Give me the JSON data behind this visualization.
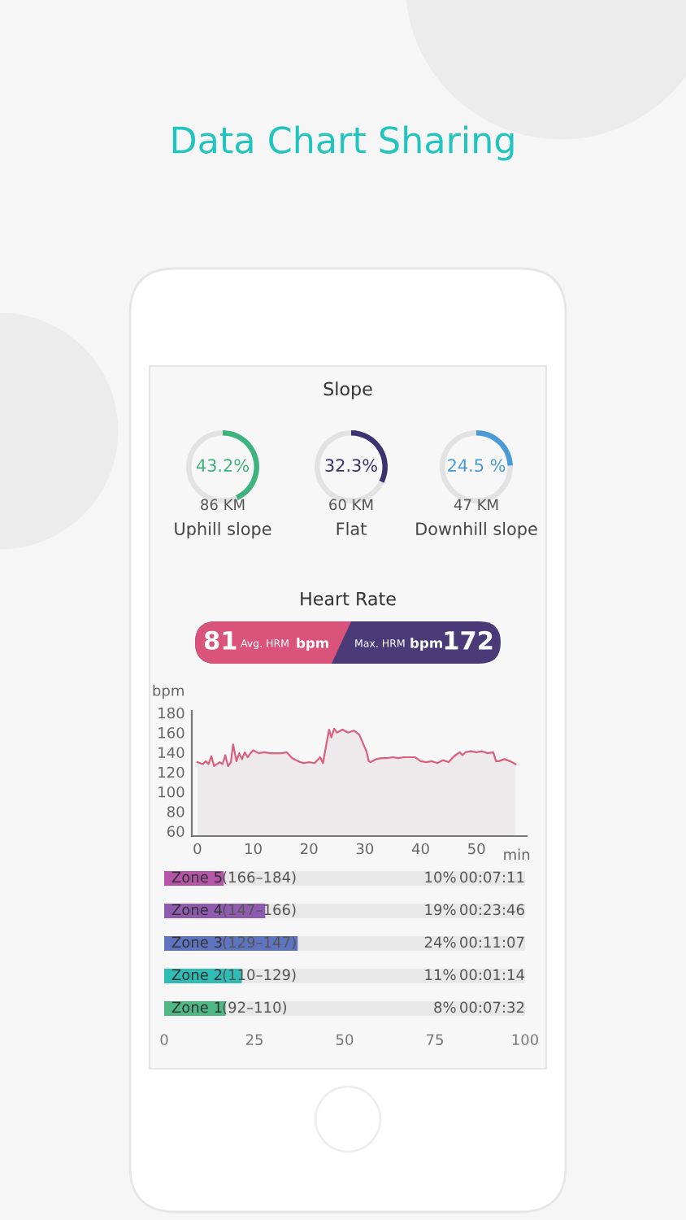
{
  "chart_data": [
    {
      "type": "other",
      "title": "Data Chart Sharing",
      "annotations": [
        "Slope"
      ]
    },
    {
      "type": "donut",
      "title": "Uphill slope",
      "subtitle": "86 KM",
      "categories": [
        null,
        null
      ],
      "values": [
        43.2,
        56.8
      ],
      "colors": [
        "#3fb27f",
        "#e2e2e2"
      ],
      "value_labels": [
        "43.2%",
        null
      ]
    },
    {
      "type": "donut",
      "title": "Flat",
      "subtitle": "60 KM",
      "categories": [
        null,
        null
      ],
      "values": [
        32.3,
        67.7
      ],
      "colors": [
        "#3d3270",
        "#e2e2e2"
      ],
      "value_labels": [
        "32.3%",
        null
      ]
    },
    {
      "type": "donut",
      "title": "Downhill slope",
      "subtitle": "47 KM",
      "categories": [
        null,
        null
      ],
      "values": [
        24.5,
        75.5
      ],
      "colors": [
        "#4a9ad6",
        "#e2e2e2"
      ],
      "value_labels": [
        "24.5 %",
        null
      ]
    },
    {
      "type": "other",
      "title": "Heart Rate",
      "colors": [
        "#d9537a",
        "#4a3b78"
      ],
      "annotations": [
        "81",
        "Avg. HRM",
        "bpm",
        "Max. HRM",
        "bpm",
        "172"
      ]
    },
    {
      "type": "area",
      "xlabel": "min",
      "ylabel": "bpm",
      "xlim": [
        -1,
        59
      ],
      "ylim": [
        55,
        182
      ],
      "xticks": [
        0,
        10,
        20,
        30,
        40,
        50
      ],
      "yticks": [
        60,
        80,
        100,
        120,
        140,
        160,
        180
      ],
      "grid": false,
      "marker": "none",
      "line_style": "solid",
      "series": [
        {
          "color": "#d9607f",
          "x": [
            0,
            1,
            1.5,
            2,
            2.5,
            3,
            4,
            4.5,
            5,
            5.5,
            6,
            6.4,
            7,
            7.5,
            8,
            8.5,
            9,
            9.5,
            10,
            11,
            12,
            13,
            14,
            15,
            16,
            17,
            18,
            19,
            20,
            21,
            22,
            22.5,
            23,
            23.6,
            24,
            24.5,
            25,
            26,
            27,
            28,
            29,
            29.9,
            30.3,
            30.7,
            31,
            32,
            33,
            34,
            35,
            36,
            37,
            38,
            39,
            40,
            41,
            42,
            43,
            44,
            45,
            46,
            47,
            47.5,
            48,
            49,
            50,
            51,
            52,
            53,
            53.5,
            54,
            55,
            56,
            57
          ],
          "values": [
            130,
            128,
            131,
            128,
            136,
            126,
            130,
            128,
            137,
            126,
            130,
            148,
            131,
            139,
            133,
            140,
            135,
            139,
            142,
            139,
            140,
            139,
            139,
            139,
            140,
            134,
            131,
            129,
            130,
            129,
            135,
            129,
            145,
            163,
            155,
            164,
            160,
            163,
            160,
            162,
            158,
            146,
            141,
            131,
            130,
            133,
            134,
            134,
            135,
            134,
            135,
            135,
            135,
            131,
            130,
            131,
            129,
            132,
            130,
            136,
            140,
            137,
            140,
            141,
            140,
            141,
            139,
            140,
            131,
            131,
            133,
            131,
            128
          ]
        }
      ]
    },
    {
      "type": "bar",
      "orientation": "horizontal",
      "categories": [
        "Zone 5",
        "Zone 4",
        "Zone 3",
        "Zone 2",
        "Zone 1"
      ],
      "values": [
        16.5,
        28,
        37,
        21.5,
        17
      ],
      "colors": [
        "#b455a8",
        "#8e5bb0",
        "#5e74c0",
        "#2fbcb5",
        "#4fb885"
      ],
      "xlim": [
        0,
        100
      ],
      "xticks": [
        0,
        25,
        50,
        75,
        100
      ],
      "tick_labels": "x",
      "annotations": [
        "(166–184)",
        "10%",
        "00:07:11",
        "(147–166)",
        "19%",
        "00:23:46",
        "(129–147)",
        "24%",
        "00:11:07",
        "(110–129)",
        "11%",
        "00:01:14",
        "(92–110)",
        "8%",
        "00:07:32"
      ]
    }
  ]
}
